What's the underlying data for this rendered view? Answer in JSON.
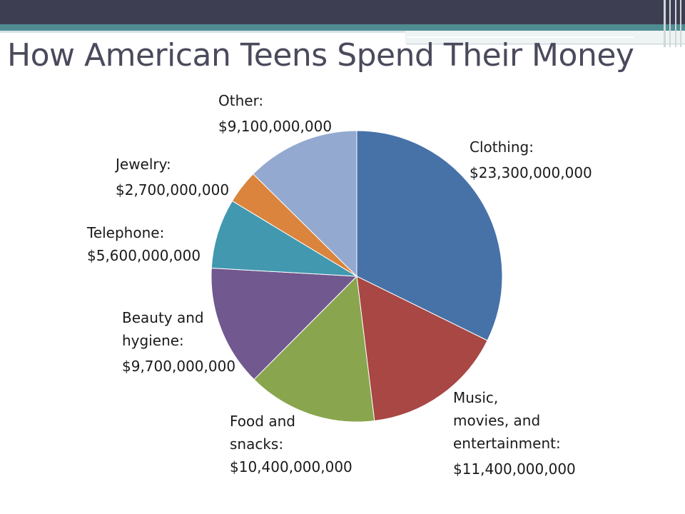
{
  "slide": {
    "title": "How American Teens Spend Their Money"
  },
  "chart_data": {
    "type": "pie",
    "slices": [
      {
        "label_lines": [
          "Clothing:"
        ],
        "value_text": "$23,300,000,000",
        "value": 23300000000,
        "color": "#4672a8"
      },
      {
        "label_lines": [
          "Music,",
          "movies, and",
          "entertainment:"
        ],
        "value_text": "$11,400,000,000",
        "value": 11400000000,
        "color": "#a84744"
      },
      {
        "label_lines": [
          "Food and",
          "snacks:"
        ],
        "value_text": "$10,400,000,000",
        "value": 10400000000,
        "color": "#89a54e"
      },
      {
        "label_lines": [
          "Beauty and",
          "hygiene:"
        ],
        "value_text": "$9,700,000,000",
        "value": 9700000000,
        "color": "#71588f"
      },
      {
        "label_lines": [
          "Telephone:"
        ],
        "value_text": "$5,600,000,000",
        "value": 5600000000,
        "color": "#4198af"
      },
      {
        "label_lines": [
          "Jewelry:"
        ],
        "value_text": "$2,700,000,000",
        "value": 2700000000,
        "color": "#db843d"
      },
      {
        "label_lines": [
          "Other:"
        ],
        "value_text": "$9,100,000,000",
        "value": 9100000000,
        "color": "#93a9cf"
      }
    ],
    "start_angle_deg": 0,
    "direction": "clockwise",
    "legend": "none",
    "data_labels": "outside"
  }
}
